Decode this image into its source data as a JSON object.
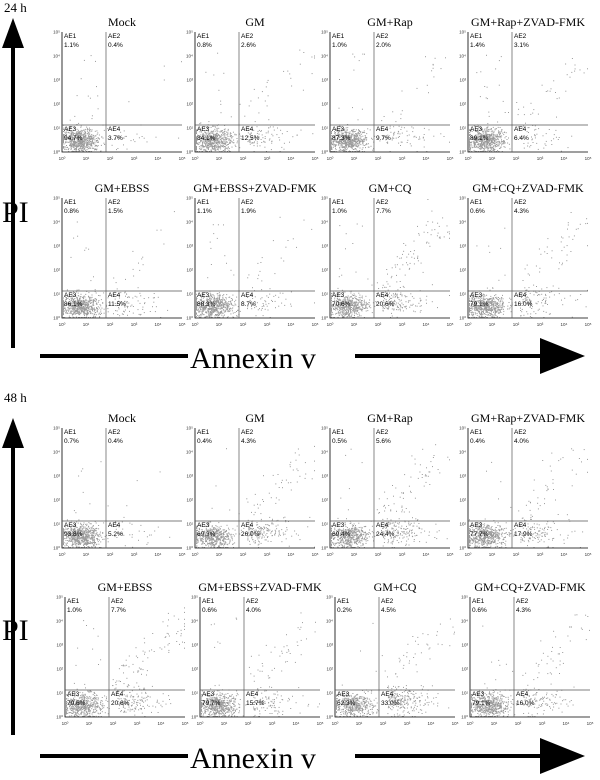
{
  "figure": {
    "panels": [
      {
        "time": "24 h",
        "y_axis_label": "PI",
        "x_axis_label": "Annexin v",
        "plots": [
          {
            "title": "Mock",
            "q": {
              "AE1": "1.1%",
              "AE2": "0.4%",
              "AE3": "94.7%",
              "AE4": "3.7%"
            }
          },
          {
            "title": "GM",
            "q": {
              "AE1": "0.8%",
              "AE2": "2.6%",
              "AE3": "84.1%",
              "AE4": "12.5%"
            }
          },
          {
            "title": "GM+Rap",
            "q": {
              "AE1": "1.0%",
              "AE2": "2.0%",
              "AE3": "87.3%",
              "AE4": "9.7%"
            }
          },
          {
            "title": "GM+Rap+ZVAD-FMK",
            "q": {
              "AE1": "1.4%",
              "AE2": "3.1%",
              "AE3": "89.1%",
              "AE4": "6.4%"
            }
          },
          {
            "title": "GM+EBSS",
            "q": {
              "AE1": "0.8%",
              "AE2": "1.5%",
              "AE3": "86.1%",
              "AE4": "11.5%"
            }
          },
          {
            "title": "GM+EBSS+ZVAD-FMK",
            "q": {
              "AE1": "1.1%",
              "AE2": "1.9%",
              "AE3": "88.3%",
              "AE4": "8.7%"
            }
          },
          {
            "title": "GM+CQ",
            "q": {
              "AE1": "1.0%",
              "AE2": "7.7%",
              "AE3": "70.6%",
              "AE4": "20.6%"
            }
          },
          {
            "title": "GM+CQ+ZVAD-FMK",
            "q": {
              "AE1": "0.6%",
              "AE2": "4.3%",
              "AE3": "79.1%",
              "AE4": "16.0%"
            }
          }
        ]
      },
      {
        "time": "48 h",
        "y_axis_label": "PI",
        "x_axis_label": "Annexin v",
        "plots": [
          {
            "title": "Mock",
            "q": {
              "AE1": "0.7%",
              "AE2": "0.4%",
              "AE3": "93.8%",
              "AE4": "5.2%"
            }
          },
          {
            "title": "GM",
            "q": {
              "AE1": "0.4%",
              "AE2": "4.3%",
              "AE3": "69.3%",
              "AE4": "26.0%"
            }
          },
          {
            "title": "GM+Rap",
            "q": {
              "AE1": "0.5%",
              "AE2": "5.6%",
              "AE3": "69.4%",
              "AE4": "24.4%"
            }
          },
          {
            "title": "GM+Rap+ZVAD-FMK",
            "q": {
              "AE1": "0.4%",
              "AE2": "4.0%",
              "AE3": "77.7%",
              "AE4": "17.9%"
            }
          },
          {
            "title": "GM+EBSS",
            "q": {
              "AE1": "1.0%",
              "AE2": "7.7%",
              "AE3": "70.6%",
              "AE4": "20.6%"
            }
          },
          {
            "title": "GM+EBSS+ZVAD-FMK",
            "q": {
              "AE1": "0.6%",
              "AE2": "4.0%",
              "AE3": "79.7%",
              "AE4": "15.7%"
            }
          },
          {
            "title": "GM+CQ",
            "q": {
              "AE1": "0.2%",
              "AE2": "4.5%",
              "AE3": "62.3%",
              "AE4": "33.0%"
            }
          },
          {
            "title": "GM+CQ+ZVAD-FMK",
            "q": {
              "AE1": "0.6%",
              "AE2": "4.3%",
              "AE3": "79.1%",
              "AE4": "16.0%"
            }
          }
        ]
      }
    ]
  },
  "chart_data": {
    "type": "scatter",
    "x_tick_labels": [
      "10⁰",
      "10¹",
      "10²",
      "10³",
      "10⁴",
      "10⁵"
    ],
    "y_tick_labels": [
      "10⁰",
      "10¹",
      "10²",
      "10³",
      "10⁴",
      "10⁵"
    ],
    "x_scale": "log",
    "y_scale": "log",
    "colors": {
      "points": "#9a9a9a",
      "axes": "#000000",
      "gates": "#555555"
    }
  }
}
